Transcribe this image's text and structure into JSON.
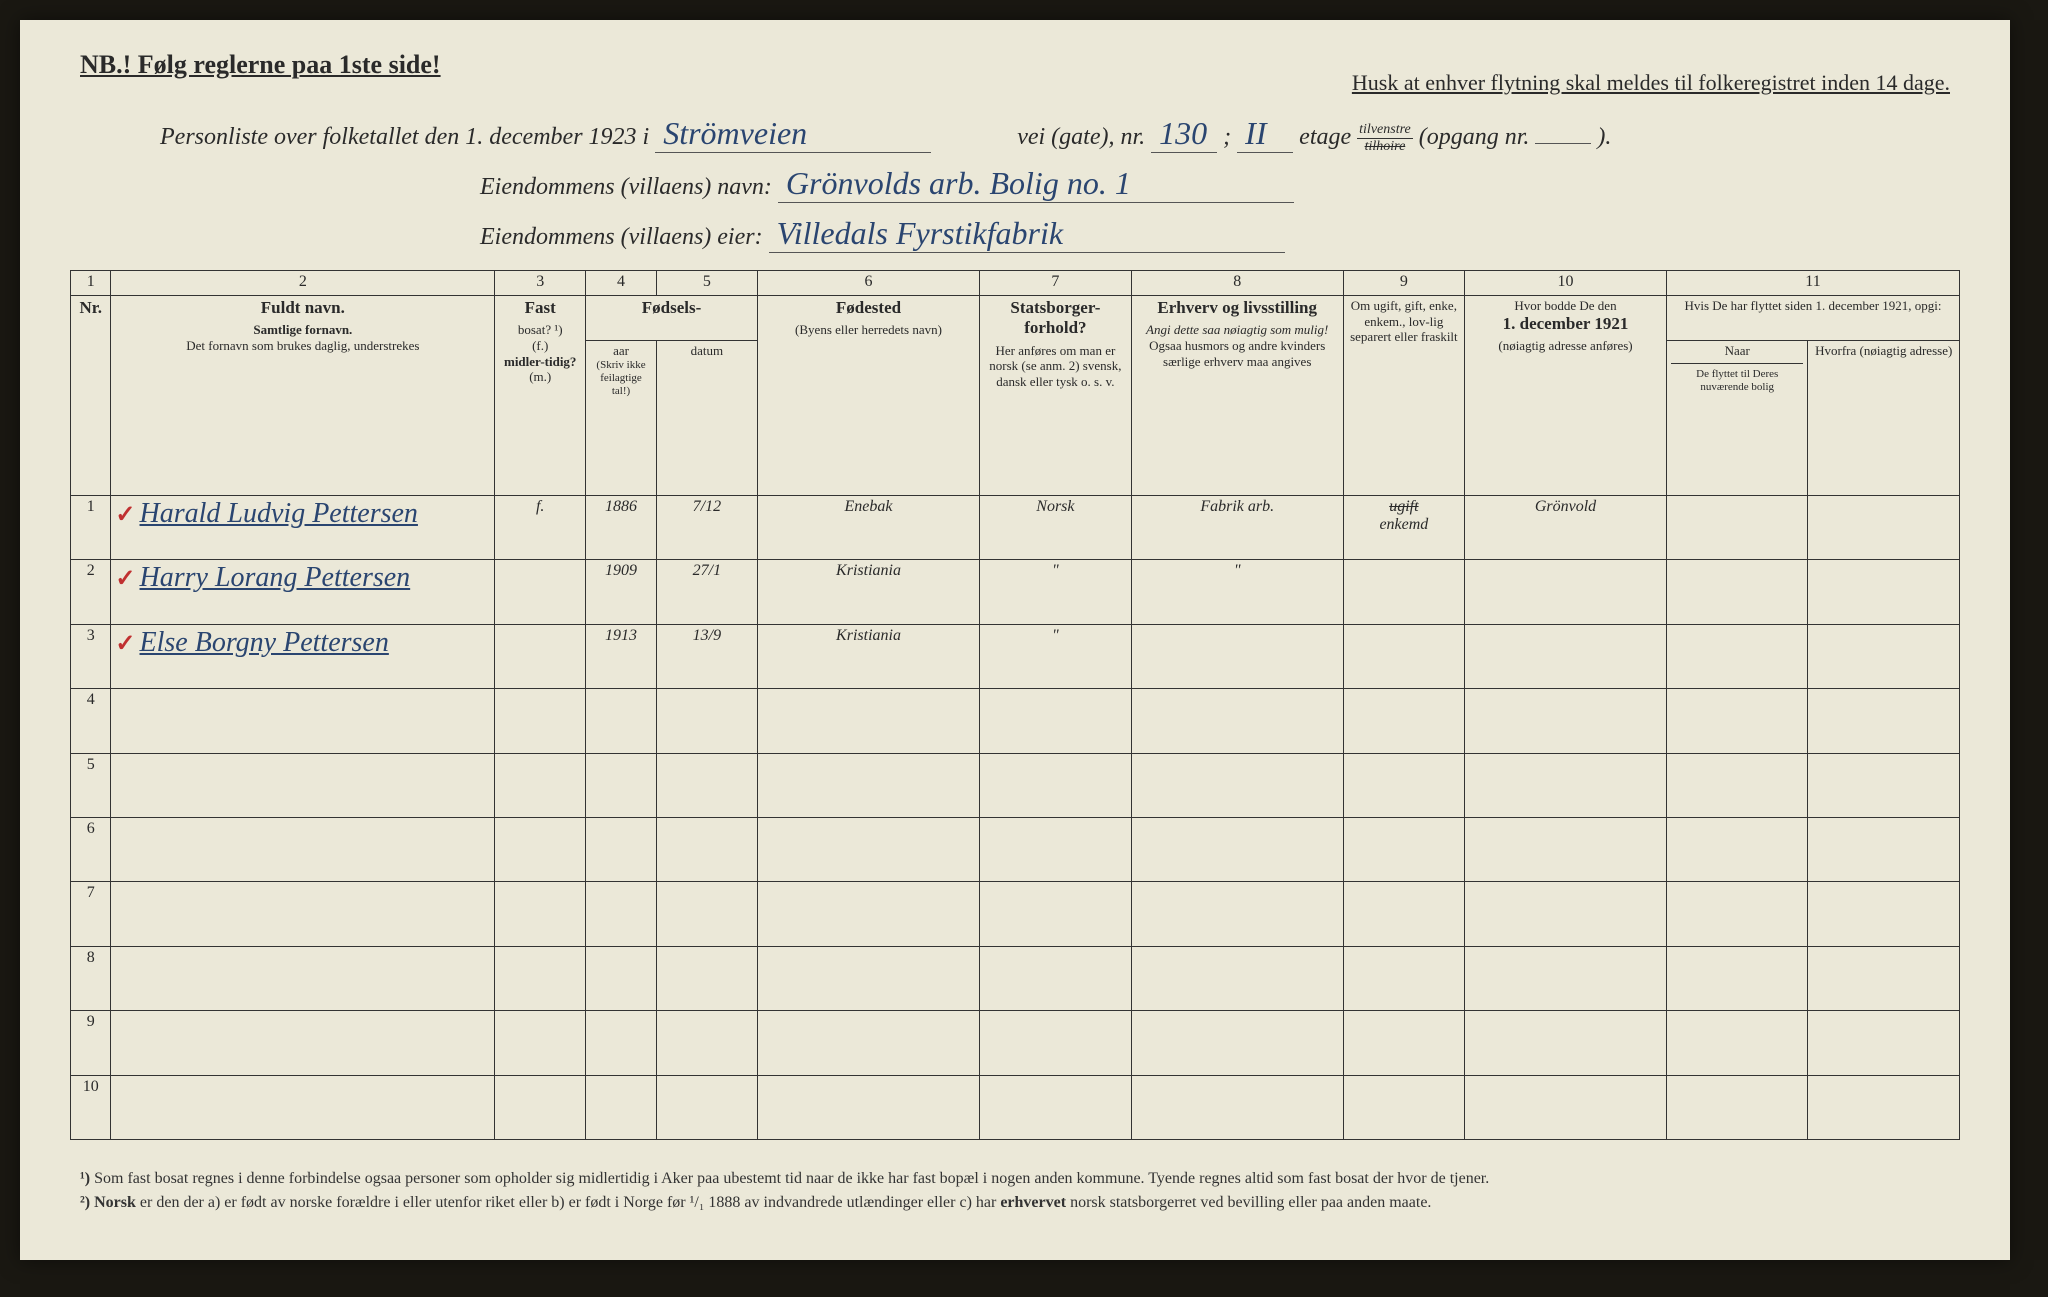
{
  "header": {
    "nb": "NB.! Følg reglerne paa 1ste side!",
    "husk": "Husk at enhver flytning skal meldes til folkeregistret inden 14 dage."
  },
  "intro": {
    "line1_pre": "Personliste over folketallet den 1. december 1923 i",
    "street": "Strömveien",
    "vei_gate": "vei (gate), nr.",
    "nr": "130",
    "semicolon": ";",
    "etage_num": "II",
    "etage": "etage",
    "tilvenstre": "tilvenstre",
    "tilhoire": "tilhoire",
    "opgang": "(opgang nr.",
    "opgang_close": ").",
    "line2_label": "Eiendommens (villaens) navn:",
    "line2_value": "Grönvolds arb. Bolig no. 1",
    "line3_label": "Eiendommens (villaens) eier:",
    "line3_value": "Villedals Fyrstikfabrik"
  },
  "columns": {
    "nums": [
      "1",
      "2",
      "3",
      "4",
      "5",
      "6",
      "7",
      "8",
      "9",
      "10",
      "11"
    ],
    "widths": [
      40,
      380,
      90,
      70,
      100,
      220,
      150,
      210,
      120,
      200,
      150,
      150
    ],
    "c1": "Nr.",
    "c2_main": "Fuldt navn.",
    "c2_sub1": "Samtlige fornavn.",
    "c2_sub2": "Det fornavn som brukes daglig, understrekes",
    "c3_main": "Fast",
    "c3_sub1": "bosat? ¹)",
    "c3_sub2": "(f.)",
    "c3_sub3": "midler-tidig?",
    "c3_sub4": "(m.)",
    "c45_main": "Fødsels-",
    "c4_sub": "aar",
    "c5_sub": "datum",
    "c45_note": "(Skriv ikke feilagtige tal!)",
    "c6_main": "Fødested",
    "c6_sub": "(Byens eller herredets navn)",
    "c7_main": "Statsborger-forhold?",
    "c7_sub": "Her anføres om man er norsk (se anm. 2) svensk, dansk eller tysk o. s. v.",
    "c8_main": "Erhverv og livsstilling",
    "c8_sub1": "Angi dette saa nøiagtig som mulig!",
    "c8_sub2": "Ogsaa husmors og andre kvinders særlige erhverv maa angives",
    "c9_sub": "Om ugift, gift, enke, enkem., lov-lig separert eller fraskilt",
    "c10_main": "Hvor bodde De den",
    "c10_date": "1. december 1921",
    "c10_sub": "(nøiagtig adresse anføres)",
    "c11_main": "Hvis De har flyttet siden 1. december 1921, opgi:",
    "c11a": "Naar",
    "c11b": "Hvorfra (nøiagtig adresse)",
    "c11c": "De flyttet til Deres nuværende bolig"
  },
  "rows": [
    {
      "nr": "1",
      "check": "✓",
      "name": "Harald Ludvig Pettersen",
      "fast": "f.",
      "aar": "1886",
      "datum": "7/12",
      "fodested": "Enebak",
      "statsborger": "Norsk",
      "erhverv": "Fabrik arb.",
      "sivil_strike": "ugift",
      "sivil": "enkemd",
      "bodde": "Grönvold",
      "naar": "",
      "hvorfra": ""
    },
    {
      "nr": "2",
      "check": "✓",
      "name": "Harry Lorang Pettersen",
      "fast": "",
      "aar": "1909",
      "datum": "27/1",
      "fodested": "Kristiania",
      "statsborger": "\"",
      "erhverv": "\"",
      "sivil_strike": "",
      "sivil": "",
      "bodde": "",
      "naar": "",
      "hvorfra": ""
    },
    {
      "nr": "3",
      "check": "✓",
      "name": "Else Borgny Pettersen",
      "fast": "",
      "aar": "1913",
      "datum": "13/9",
      "fodested": "Kristiania",
      "statsborger": "\"",
      "erhverv": "",
      "sivil_strike": "",
      "sivil": "",
      "bodde": "",
      "naar": "",
      "hvorfra": ""
    }
  ],
  "empty_rows": [
    "4",
    "5",
    "6",
    "7",
    "8",
    "9",
    "10"
  ],
  "footnotes": {
    "f1_num": "¹)",
    "f1": "Som fast bosat regnes i denne forbindelse ogsaa personer som opholder sig midlertidig i Aker paa ubestemt tid naar de ikke har fast bopæl i nogen anden kommune. Tyende regnes altid som fast bosat der hvor de tjener.",
    "f2_num": "²)",
    "f2_a": "Norsk",
    "f2_b": " er den der a) er født av norske forældre i eller utenfor riket eller b) er født i Norge før ¹/₁ 1888 av indvandrede utlændinger eller c) har ",
    "f2_c": "erhvervet",
    "f2_d": " norsk statsborgerret ved bevilling eller paa anden maate."
  },
  "colors": {
    "paper": "#ebe8d8",
    "ink_print": "#2a2a2a",
    "ink_hand": "#2a4570",
    "check_red": "#c03030",
    "border": "#333333",
    "background": "#1a1812"
  },
  "fonts": {
    "print": "Georgia, serif",
    "hand": "Brush Script MT, cursive",
    "header_size": 26,
    "body_size": 16,
    "hand_size": 28
  }
}
